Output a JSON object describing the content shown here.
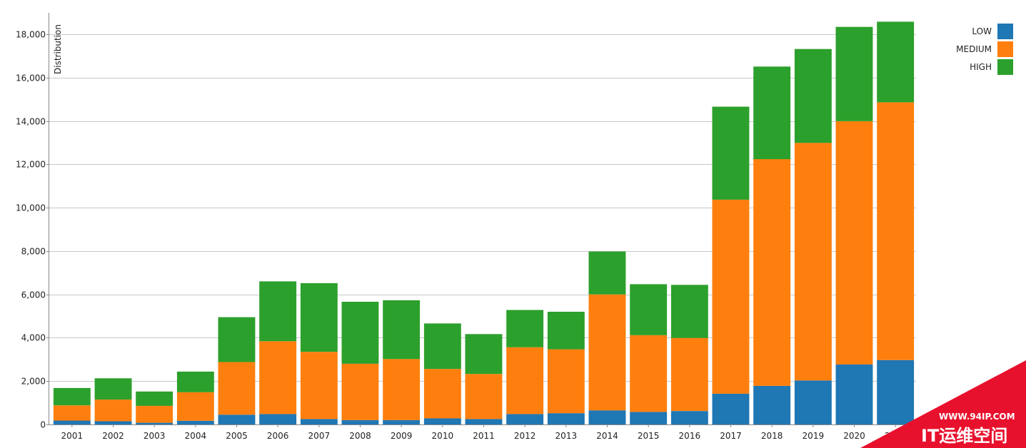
{
  "chart_data": {
    "type": "bar",
    "stacked": true,
    "categories": [
      "2001",
      "2002",
      "2003",
      "2004",
      "2005",
      "2006",
      "2007",
      "2008",
      "2009",
      "2010",
      "2011",
      "2012",
      "2013",
      "2014",
      "2015",
      "2016",
      "2017",
      "2018",
      "2019",
      "2020",
      "2021"
    ],
    "series": [
      {
        "name": "LOW",
        "color": "#1f77b4",
        "values": [
          180,
          150,
          80,
          170,
          450,
          480,
          250,
          200,
          200,
          280,
          250,
          480,
          520,
          650,
          580,
          620,
          1420,
          1780,
          2030,
          2770,
          2970
        ]
      },
      {
        "name": "MEDIUM",
        "color": "#ff7f0e",
        "values": [
          700,
          1000,
          780,
          1320,
          2430,
          3360,
          3100,
          2600,
          2820,
          2280,
          2080,
          3080,
          2950,
          5350,
          3540,
          3370,
          8950,
          10460,
          10960,
          11220,
          11890
        ]
      },
      {
        "name": "HIGH",
        "color": "#2ca02c",
        "values": [
          800,
          980,
          660,
          950,
          2070,
          2760,
          3170,
          2860,
          2710,
          2100,
          1840,
          1720,
          1730,
          1980,
          2350,
          2450,
          4290,
          4270,
          4330,
          4350,
          3720
        ]
      }
    ],
    "ylabel": "Distribution",
    "ylim": [
      0,
      18500
    ],
    "yticks": [
      0,
      2000,
      4000,
      6000,
      8000,
      10000,
      12000,
      14000,
      16000,
      18000
    ],
    "ytick_labels": [
      "0",
      "2,000",
      "4,000",
      "6,000",
      "8,000",
      "10,000",
      "12,000",
      "14,000",
      "16,000",
      "18,000"
    ],
    "grid": true,
    "legend_position": "top-right",
    "legend_order": [
      "LOW",
      "MEDIUM",
      "HIGH"
    ]
  },
  "watermark": {
    "url": "WWW.94IP.COM",
    "name": "IT运维空间",
    "color": "#e8112d"
  }
}
